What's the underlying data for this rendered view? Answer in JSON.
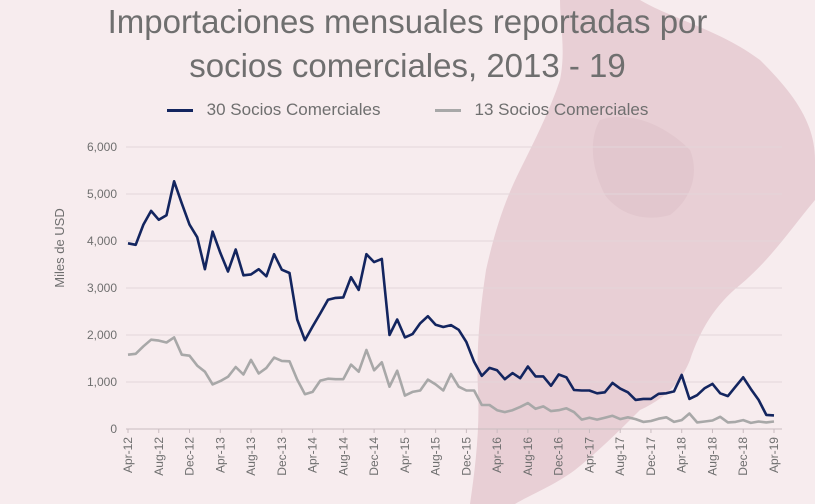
{
  "colors": {
    "background": "#f7ecee",
    "map": "#e8cfd5",
    "series_30": "#13255f",
    "series_13": "#a8a8a8",
    "grid": "#e3d6d9",
    "text": "#6f6f6f"
  },
  "title_line1": "Importaciones mensuales reportadas por",
  "title_line2": "socios comerciales, 2013 - 19",
  "chart_data": {
    "type": "line",
    "title": "Importaciones mensuales reportadas por socios comerciales, 2013 - 19",
    "ylabel": "Miles de USD",
    "xlabel": "",
    "ylim": [
      0,
      6000
    ],
    "y_ticks": [
      "0",
      "1,000",
      "2,000",
      "3,000",
      "4,000",
      "5,000",
      "6,000"
    ],
    "x_tick_labels": [
      "Apr-12",
      "Aug-12",
      "Dec-12",
      "Apr-13",
      "Aug-13",
      "Dec-13",
      "Apr-14",
      "Aug-14",
      "Dec-14",
      "Apr-15",
      "Aug-15",
      "Dec-15",
      "Apr-16",
      "Aug-16",
      "Dec-16",
      "Apr-17",
      "Aug-17",
      "Dec-17",
      "Apr-18",
      "Aug-18",
      "Dec-18",
      "Apr-19"
    ],
    "x_start": "2012-04",
    "x_end": "2019-04",
    "grid": true,
    "legend_position": "top",
    "series": [
      {
        "name": "30 Socios Comerciales",
        "values": [
          3950,
          3920,
          4350,
          4640,
          4450,
          4550,
          5270,
          4800,
          4350,
          4080,
          3400,
          4200,
          3750,
          3350,
          3820,
          3270,
          3290,
          3400,
          3250,
          3720,
          3390,
          3320,
          2330,
          1890,
          2180,
          2460,
          2750,
          2790,
          2800,
          3230,
          2960,
          3720,
          3550,
          3620,
          2000,
          2330,
          1950,
          2020,
          2250,
          2400,
          2220,
          2170,
          2210,
          2110,
          1850,
          1430,
          1130,
          1300,
          1250,
          1060,
          1190,
          1080,
          1330,
          1120,
          1120,
          920,
          1160,
          1100,
          830,
          820,
          820,
          760,
          780,
          980,
          860,
          780,
          620,
          640,
          640,
          750,
          760,
          800,
          1150,
          640,
          720,
          870,
          960,
          760,
          700,
          900,
          1100,
          850,
          620,
          300,
          290
        ]
      },
      {
        "name": "13 Socios Comerciales",
        "values": [
          1580,
          1600,
          1760,
          1900,
          1880,
          1840,
          1950,
          1580,
          1560,
          1350,
          1220,
          950,
          1020,
          1110,
          1320,
          1160,
          1470,
          1180,
          1300,
          1520,
          1450,
          1440,
          1050,
          740,
          790,
          1030,
          1070,
          1060,
          1060,
          1370,
          1220,
          1680,
          1250,
          1420,
          900,
          1240,
          710,
          790,
          820,
          1050,
          950,
          820,
          1170,
          900,
          820,
          820,
          510,
          510,
          400,
          360,
          400,
          470,
          550,
          430,
          480,
          380,
          400,
          440,
          360,
          200,
          240,
          200,
          240,
          280,
          210,
          250,
          210,
          150,
          170,
          220,
          250,
          150,
          190,
          330,
          140,
          160,
          180,
          260,
          140,
          150,
          190,
          130,
          160,
          140,
          160
        ]
      }
    ]
  }
}
